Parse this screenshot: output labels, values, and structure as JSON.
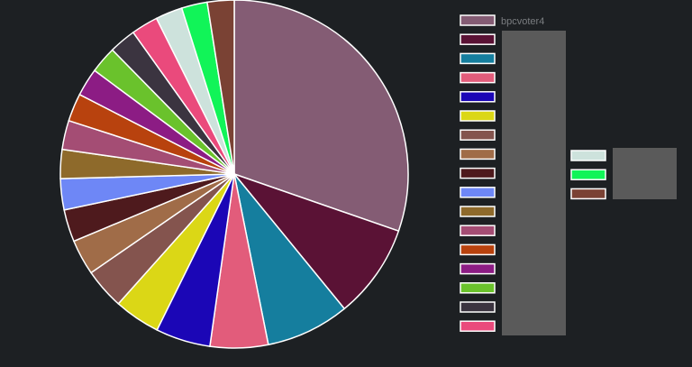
{
  "chart_data": {
    "type": "pie",
    "slices": [
      {
        "label": "bpcvoter4",
        "value": 30.4,
        "color": "#845c74"
      },
      {
        "label": "",
        "value": 8.8,
        "color": "#5a1235"
      },
      {
        "label": "",
        "value": 7.8,
        "color": "#157e9e"
      },
      {
        "label": "",
        "value": 5.4,
        "color": "#e25c7b"
      },
      {
        "label": "",
        "value": 5.1,
        "color": "#1b06b6"
      },
      {
        "label": "",
        "value": 4.3,
        "color": "#dbd716"
      },
      {
        "label": "",
        "value": 3.8,
        "color": "#84544e"
      },
      {
        "label": "",
        "value": 3.3,
        "color": "#a06c48"
      },
      {
        "label": "",
        "value": 3.0,
        "color": "#4e1a1d"
      },
      {
        "label": "",
        "value": 2.9,
        "color": "#6e87f6"
      },
      {
        "label": "",
        "value": 2.7,
        "color": "#8e6a2b"
      },
      {
        "label": "",
        "value": 2.7,
        "color": "#a44d74"
      },
      {
        "label": "",
        "value": 2.6,
        "color": "#b8420e"
      },
      {
        "label": "",
        "value": 2.6,
        "color": "#8c1c84"
      },
      {
        "label": "",
        "value": 2.5,
        "color": "#6ac22c"
      },
      {
        "label": "",
        "value": 2.5,
        "color": "#3b3440"
      },
      {
        "label": "",
        "value": 2.5,
        "color": "#ea4a7c"
      },
      {
        "label": "",
        "value": 2.5,
        "color": "#cde2dc"
      },
      {
        "label": "",
        "value": 2.4,
        "color": "#11f458"
      },
      {
        "label": "",
        "value": 2.5,
        "color": "#7a4234"
      }
    ],
    "legend_position": "right"
  }
}
